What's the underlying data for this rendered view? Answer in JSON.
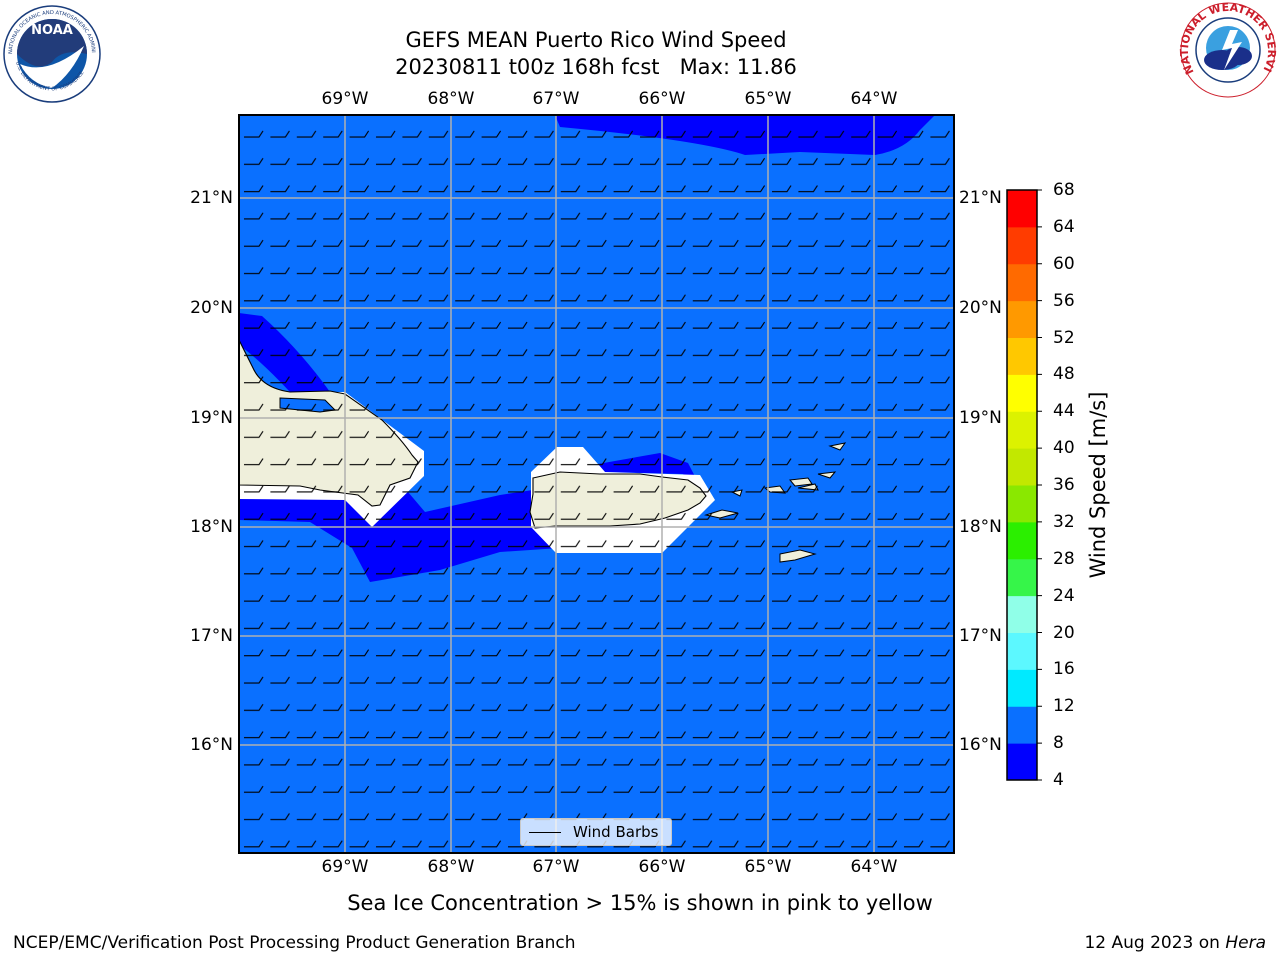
{
  "title": {
    "line1": "GEFS MEAN Puerto Rico Wind Speed",
    "line2": "20230811 t00z 168h fcst   Max: 11.86"
  },
  "map": {
    "region": "Puerto Rico",
    "lon_range": [
      -70.0,
      -63.25
    ],
    "lat_range": [
      15.0,
      21.75
    ],
    "lon_ticks": [
      "69°W",
      "68°W",
      "67°W",
      "66°W",
      "65°W",
      "64°W"
    ],
    "lat_ticks_left": [
      "21°N",
      "20°N",
      "19°N",
      "18°N",
      "17°N",
      "16°N"
    ],
    "lat_ticks_right": [
      "21°N",
      "20°N",
      "19°N",
      "18°N",
      "17°N",
      "16°N"
    ],
    "gridlines": true,
    "legend": {
      "label": "Wind Barbs",
      "placement": "lower-center"
    },
    "colors": {
      "wind_4_8": "#0000ff",
      "wind_8_12": "#0a70ff",
      "land": "#efefdb",
      "gridline": "#b0b0b0"
    }
  },
  "colorbar": {
    "label": "Wind Speed [m/s]",
    "ticks": [
      "68",
      "64",
      "60",
      "56",
      "52",
      "48",
      "44",
      "40",
      "36",
      "32",
      "28",
      "24",
      "20",
      "16",
      "12",
      "8",
      "4"
    ],
    "colors_low_to_high": [
      "#0000ff",
      "#0a70ff",
      "#00eaff",
      "#5cf8ff",
      "#90ffe8",
      "#36f549",
      "#2bef00",
      "#8ae800",
      "#c2e800",
      "#dcf200",
      "#ffff00",
      "#ffc800",
      "#ff9900",
      "#ff6a00",
      "#ff3c00",
      "#ff0000"
    ]
  },
  "caption": "Sea Ice Concentration > 15% is shown in pink to yellow",
  "footer": {
    "left": "NCEP/EMC/Verification Post Processing Product Generation Branch",
    "right_date": "12 Aug 2023 on ",
    "right_host": "Hera"
  },
  "logos": {
    "noaa_text": "NOAA",
    "noaa_ring_top": "NATIONAL OCEANIC AND ATMOSPHERIC ADMINISTRATION",
    "noaa_ring_bottom": "U.S. DEPARTMENT OF COMMERCE",
    "nws_ring": "NATIONAL WEATHER SERVICE"
  }
}
